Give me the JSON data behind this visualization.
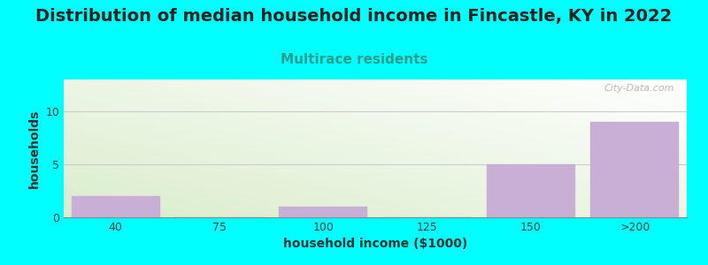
{
  "title": "Distribution of median household income in Fincastle, KY in 2022",
  "subtitle": "Multirace residents",
  "xlabel": "household income ($1000)",
  "ylabel": "households",
  "categories": [
    "40",
    "75",
    "100",
    "125",
    "150",
    ">200"
  ],
  "values": [
    2,
    0,
    1,
    0,
    5,
    9
  ],
  "bar_color": "#c9aed6",
  "bar_edge_color": "#c9aed6",
  "bg_color": "#00ffff",
  "gradient_green": [
    0.855,
    0.929,
    0.8
  ],
  "gradient_white": [
    1.0,
    1.0,
    1.0
  ],
  "title_fontsize": 14,
  "title_color": "#222222",
  "subtitle_fontsize": 11,
  "subtitle_color": "#2a9d8f",
  "axis_label_fontsize": 10,
  "tick_fontsize": 9,
  "ylim": [
    0,
    13
  ],
  "yticks": [
    0,
    5,
    10
  ],
  "watermark_text": "City-Data.com",
  "bar_width": 0.85,
  "grid_color": "#cccccc"
}
